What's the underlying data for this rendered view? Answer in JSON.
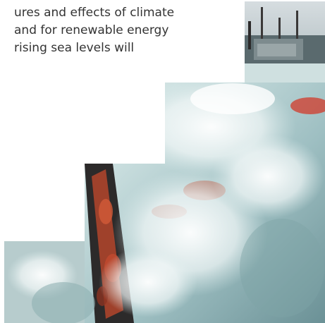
{
  "text": {
    "lines": [
      "ures and effects of climate",
      "and for renewable energy",
      "rising sea levels will"
    ]
  },
  "photo": {
    "subject": "ship-deck-wave",
    "colors": {
      "water_light": "#e9f2f2",
      "water_mid": "#b8d4d4",
      "water_dark": "#6f9aa0",
      "rust": "#b4452c",
      "deck_dark": "#2c2a2a",
      "sky": "#c9d3d6"
    }
  }
}
